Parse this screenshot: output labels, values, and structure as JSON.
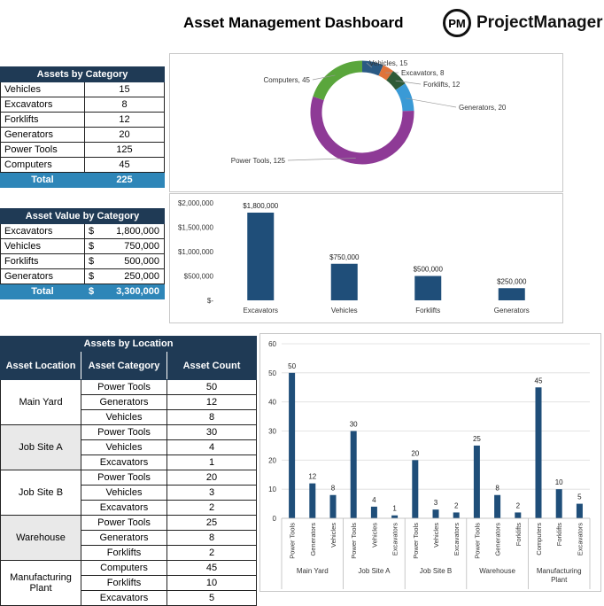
{
  "title": "Asset Management Dashboard",
  "logo": {
    "mark": "PM",
    "name": "ProjectManager"
  },
  "category_table": {
    "title": "Assets by Category",
    "rows": [
      {
        "label": "Vehicles",
        "value": "15"
      },
      {
        "label": "Excavators",
        "value": "8"
      },
      {
        "label": "Forklifts",
        "value": "12"
      },
      {
        "label": "Generators",
        "value": "20"
      },
      {
        "label": "Power Tools",
        "value": "125"
      },
      {
        "label": "Computers",
        "value": "45"
      }
    ],
    "total_label": "Total",
    "total_value": "225"
  },
  "value_table": {
    "title": "Asset Value by Category",
    "rows": [
      {
        "label": "Excavators",
        "cur": "$",
        "value": "1,800,000"
      },
      {
        "label": "Vehicles",
        "cur": "$",
        "value": "750,000"
      },
      {
        "label": "Forklifts",
        "cur": "$",
        "value": "500,000"
      },
      {
        "label": "Generators",
        "cur": "$",
        "value": "250,000"
      }
    ],
    "total_label": "Total",
    "total_cur": "$",
    "total_value": "3,300,000"
  },
  "location_table": {
    "title": "Assets by Location",
    "headers": [
      "Asset Location",
      "Asset Category",
      "Asset Count"
    ],
    "groups": [
      {
        "location": "Main Yard",
        "items": [
          {
            "cat": "Power Tools",
            "count": "50"
          },
          {
            "cat": "Generators",
            "count": "12"
          },
          {
            "cat": "Vehicles",
            "count": "8"
          }
        ]
      },
      {
        "location": "Job Site A",
        "items": [
          {
            "cat": "Power Tools",
            "count": "30"
          },
          {
            "cat": "Vehicles",
            "count": "4"
          },
          {
            "cat": "Excavators",
            "count": "1"
          }
        ]
      },
      {
        "location": "Job Site B",
        "items": [
          {
            "cat": "Power Tools",
            "count": "20"
          },
          {
            "cat": "Vehicles",
            "count": "3"
          },
          {
            "cat": "Excavators",
            "count": "2"
          }
        ]
      },
      {
        "location": "Warehouse",
        "items": [
          {
            "cat": "Power Tools",
            "count": "25"
          },
          {
            "cat": "Generators",
            "count": "8"
          },
          {
            "cat": "Forklifts",
            "count": "2"
          }
        ]
      },
      {
        "location": "Manufacturing Plant",
        "items": [
          {
            "cat": "Computers",
            "count": "45"
          },
          {
            "cat": "Forklifts",
            "count": "10"
          },
          {
            "cat": "Excavators",
            "count": "5"
          }
        ]
      }
    ]
  },
  "chart_data": [
    {
      "type": "pie",
      "donut": true,
      "slices": [
        {
          "label": "Vehicles",
          "value": 15,
          "color": "#2a5a84"
        },
        {
          "label": "Excavators",
          "value": 8,
          "color": "#e0733a"
        },
        {
          "label": "Forklifts",
          "value": 12,
          "color": "#2e5a36"
        },
        {
          "label": "Generators",
          "value": 20,
          "color": "#3a9ad6"
        },
        {
          "label": "Power Tools",
          "value": 125,
          "color": "#8e3a96"
        },
        {
          "label": "Computers",
          "value": 45,
          "color": "#5aa63c"
        }
      ]
    },
    {
      "type": "bar",
      "categories": [
        "Excavators",
        "Vehicles",
        "Forklifts",
        "Generators"
      ],
      "values": [
        1800000,
        750000,
        500000,
        250000
      ],
      "data_labels": [
        "$1,800,000",
        "$750,000",
        "$500,000",
        "$250,000"
      ],
      "y_ticks": [
        "$-",
        "$500,000",
        "$1,000,000",
        "$1,500,000",
        "$2,000,000"
      ],
      "ylim": [
        0,
        2000000
      ],
      "color": "#1f4e79"
    },
    {
      "type": "bar",
      "groups": [
        {
          "name": "Main Yard",
          "categories": [
            "Power Tools",
            "Generators",
            "Vehicles"
          ],
          "values": [
            50,
            12,
            8
          ]
        },
        {
          "name": "Job Site A",
          "categories": [
            "Power Tools",
            "Vehicles",
            "Excavators"
          ],
          "values": [
            30,
            4,
            1
          ]
        },
        {
          "name": "Job Site B",
          "categories": [
            "Power Tools",
            "Vehicles",
            "Excavators"
          ],
          "values": [
            20,
            3,
            2
          ]
        },
        {
          "name": "Warehouse",
          "categories": [
            "Power Tools",
            "Generators",
            "Forklifts"
          ],
          "values": [
            25,
            8,
            2
          ]
        },
        {
          "name": "Manufacturing Plant",
          "categories": [
            "Computers",
            "Forklifts",
            "Excavators"
          ],
          "values": [
            45,
            10,
            5
          ]
        }
      ],
      "y_ticks": [
        "0",
        "10",
        "20",
        "30",
        "40",
        "50",
        "60"
      ],
      "ylim": [
        0,
        60
      ],
      "grid": true,
      "color": "#1f4e79"
    }
  ]
}
